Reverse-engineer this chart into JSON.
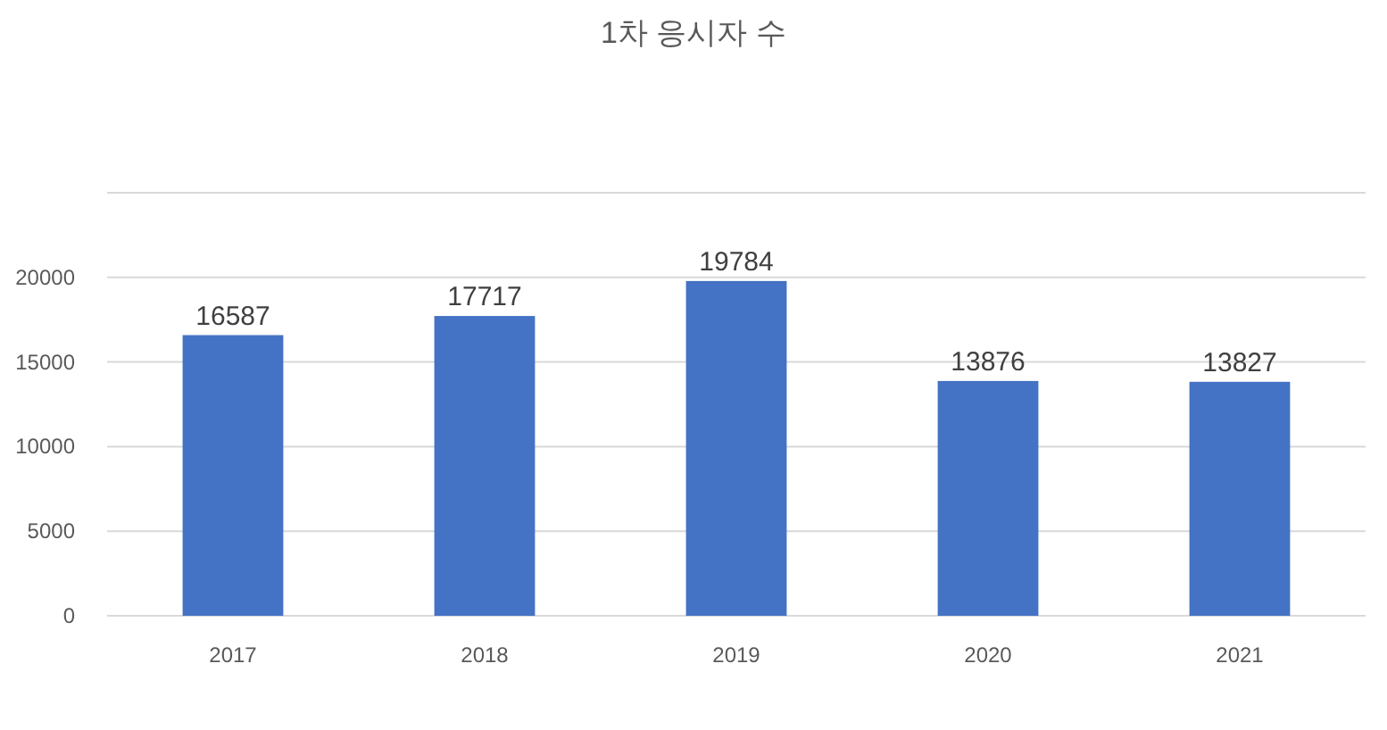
{
  "chart_data": {
    "type": "bar",
    "title": "1차 응시자 수",
    "categories": [
      "2017",
      "2018",
      "2019",
      "2020",
      "2021"
    ],
    "values": [
      16587,
      17717,
      19784,
      13876,
      13827
    ],
    "color": "#4472c4",
    "ylim": [
      0,
      25000
    ],
    "yticks": [
      0,
      5000,
      10000,
      15000,
      20000,
      {
        "value": 25000,
        "label": null
      }
    ],
    "grid": "y",
    "data_labels": true
  }
}
